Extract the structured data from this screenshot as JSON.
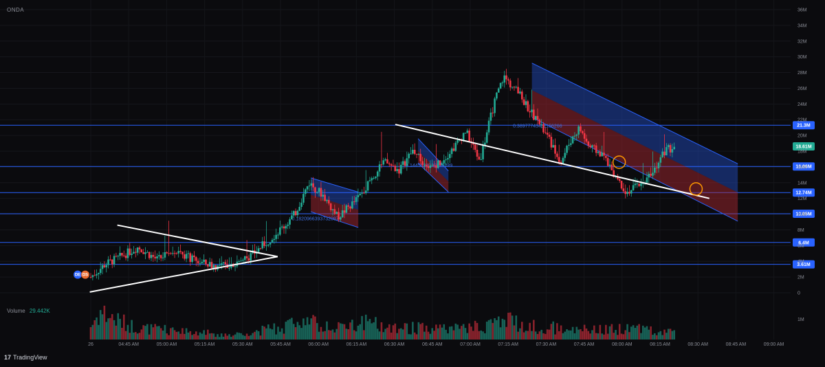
{
  "symbol": "ONDA",
  "volume_label": "Volume",
  "volume_value": "29.442K",
  "brand": "TradingView",
  "brand_mark": "17",
  "colors": {
    "background": "#0b0b0e",
    "up": "#22ab94",
    "down": "#f23645",
    "level_line": "#2962ff",
    "channel_fill_blue": "#2962ff",
    "channel_fill_red": "#b22833",
    "trendline": "#ffffff",
    "marker": "#ff9800",
    "last_price": "#22ab94"
  },
  "badges": [
    "DE",
    "DS"
  ],
  "chart_data": {
    "type": "candlestick",
    "title": "",
    "xlabel": "",
    "ylabel": "",
    "x_ticks": [
      "26",
      "04:45 AM",
      "05:00 AM",
      "05:15 AM",
      "05:30 AM",
      "05:45 AM",
      "06:00 AM",
      "06:15 AM",
      "06:30 AM",
      "06:45 AM",
      "07:00 AM",
      "07:15 AM",
      "07:30 AM",
      "07:45 AM",
      "08:00 AM",
      "08:15 AM",
      "08:30 AM",
      "08:45 AM",
      "09:00 AM"
    ],
    "y_ticks": [
      "0",
      "2M",
      "4M",
      "6M",
      "8M",
      "10M",
      "12M",
      "14M",
      "16M",
      "18M",
      "20M",
      "22M",
      "24M",
      "26M",
      "28M",
      "30M",
      "32M",
      "34M",
      "36M"
    ],
    "ylim": [
      0,
      36
    ],
    "volume_ticks": [
      "1M"
    ],
    "horizontal_levels": [
      {
        "label": "21.3M",
        "value": 21.3
      },
      {
        "label": "16.06M",
        "value": 16.06
      },
      {
        "label": "12.74M",
        "value": 12.74
      },
      {
        "label": "10.05M",
        "value": 10.05
      },
      {
        "label": "6.4M",
        "value": 6.4
      },
      {
        "label": "3.61M",
        "value": 3.61
      }
    ],
    "last_price": {
      "label": "18.61M",
      "value": 18.61
    },
    "annotations": [
      "0.1820966393732087",
      "0.1445625339840289",
      "0.38977743451156266"
    ],
    "price_path": [
      [
        -0.6,
        0.2
      ],
      [
        0,
        2.0
      ],
      [
        1.5,
        3.6
      ],
      [
        3,
        4.5
      ],
      [
        5,
        5.8
      ],
      [
        7,
        4.2
      ],
      [
        9,
        5.5
      ],
      [
        11,
        4.0
      ],
      [
        13.5,
        3.3
      ],
      [
        15,
        3.7
      ],
      [
        17,
        4.8
      ],
      [
        19,
        7.0
      ],
      [
        20.5,
        8.6
      ],
      [
        21.5,
        10.0
      ],
      [
        23,
        14.0
      ],
      [
        24.5,
        12.4
      ],
      [
        26,
        9.6
      ],
      [
        28,
        11.8
      ],
      [
        29.5,
        14.4
      ],
      [
        31,
        16.6
      ],
      [
        32.5,
        15.6
      ],
      [
        34,
        18.2
      ],
      [
        35.5,
        15.6
      ],
      [
        37,
        16.8
      ],
      [
        38.5,
        18.8
      ],
      [
        39.5,
        20.6
      ],
      [
        41,
        16.8
      ],
      [
        42.5,
        24.0
      ],
      [
        43.5,
        27.5
      ],
      [
        45,
        25.5
      ],
      [
        46.5,
        22.8
      ],
      [
        47.5,
        21.0
      ],
      [
        48.5,
        19.0
      ],
      [
        49.5,
        16.5
      ],
      [
        50.5,
        19.2
      ],
      [
        51.5,
        21.0
      ],
      [
        52.5,
        18.6
      ],
      [
        54,
        17.5
      ],
      [
        55.5,
        14.5
      ],
      [
        56.5,
        12.8
      ],
      [
        57.5,
        13.5
      ],
      [
        58.5,
        14.6
      ],
      [
        59.5,
        16.0
      ],
      [
        60.5,
        18.0
      ],
      [
        61.5,
        18.6
      ]
    ],
    "volume_profile": [
      [
        0,
        0.4
      ],
      [
        1,
        0.85
      ],
      [
        3,
        0.55
      ],
      [
        5,
        0.35
      ],
      [
        8,
        0.28
      ],
      [
        12,
        0.2
      ],
      [
        15,
        0.15
      ],
      [
        17,
        0.25
      ],
      [
        19,
        0.3
      ],
      [
        21,
        0.45
      ],
      [
        22,
        0.7
      ],
      [
        24,
        0.4
      ],
      [
        26,
        0.35
      ],
      [
        29,
        0.5
      ],
      [
        31,
        0.4
      ],
      [
        34,
        0.35
      ],
      [
        37,
        0.3
      ],
      [
        40,
        0.35
      ],
      [
        42,
        0.45
      ],
      [
        44,
        0.6
      ],
      [
        46,
        0.4
      ],
      [
        49,
        0.35
      ],
      [
        52,
        0.3
      ],
      [
        55,
        0.3
      ],
      [
        57,
        0.35
      ],
      [
        59,
        0.3
      ],
      [
        61.5,
        0.2
      ]
    ]
  }
}
